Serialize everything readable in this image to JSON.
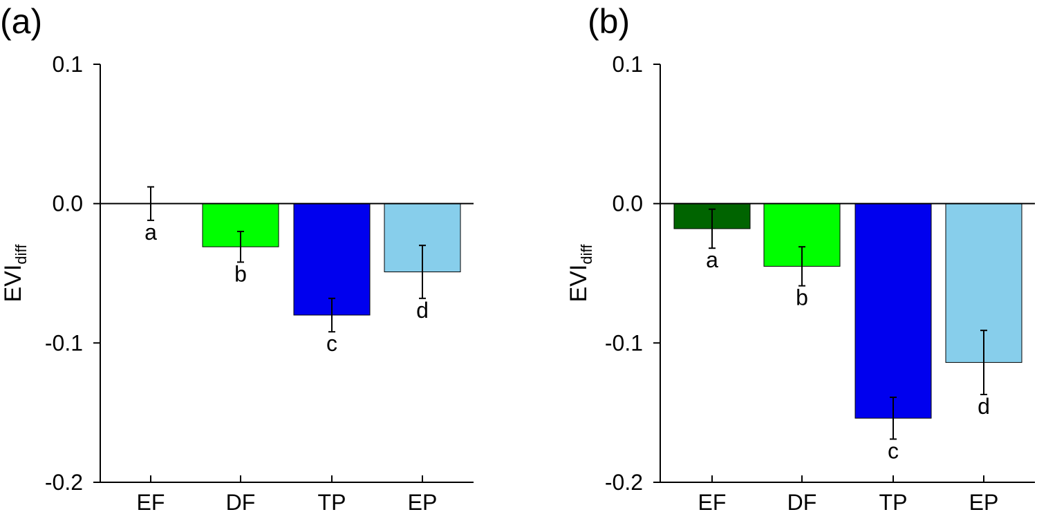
{
  "chart_data": [
    {
      "type": "bar",
      "panel_label": "(a)",
      "ylabel": "EVI",
      "ylabel_subscript": "diff",
      "ylim": [
        -0.2,
        0.1
      ],
      "yticks": [
        "0.1",
        "0.0",
        "-0.1",
        "-0.2"
      ],
      "categories": [
        "EF",
        "DF",
        "TP",
        "EP"
      ],
      "values": [
        0.0,
        -0.031,
        -0.08,
        -0.049
      ],
      "errors": [
        0.012,
        0.011,
        0.012,
        0.019
      ],
      "significance": [
        "a",
        "b",
        "c",
        "d"
      ],
      "colors": [
        "#006400",
        "#00ff00",
        "#0000ee",
        "#87ceeb"
      ],
      "grid": false,
      "baseline": 0.0
    },
    {
      "type": "bar",
      "panel_label": "(b)",
      "ylabel": "EVI",
      "ylabel_subscript": "diff",
      "ylim": [
        -0.2,
        0.1
      ],
      "yticks": [
        "0.1",
        "0.0",
        "-0.1",
        "-0.2"
      ],
      "categories": [
        "EF",
        "DF",
        "TP",
        "EP"
      ],
      "values": [
        -0.018,
        -0.045,
        -0.154,
        -0.114
      ],
      "errors": [
        0.014,
        0.014,
        0.015,
        0.023
      ],
      "significance": [
        "a",
        "b",
        "c",
        "d"
      ],
      "colors": [
        "#006400",
        "#00ff00",
        "#0000ee",
        "#87ceeb"
      ],
      "grid": false,
      "baseline": 0.0
    }
  ]
}
